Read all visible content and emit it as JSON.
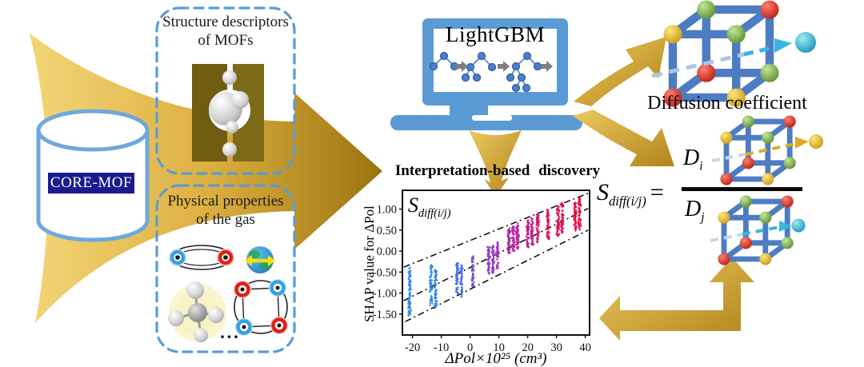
{
  "palette": {
    "gold_light": "#f2d374",
    "gold_dark": "#9b7410",
    "accent_blue": "#5b9bd5",
    "navy": "#1b1b8e",
    "strut_blue": "#4d7cc2"
  },
  "database": {
    "label": "CORE-MOF"
  },
  "structure_box": {
    "title_line1": "Structure descriptors",
    "title_line2": "of MOFs"
  },
  "physical_box": {
    "title_line1": "Physical properties",
    "title_line2": "of the gas",
    "more": "..."
  },
  "model": {
    "name": "LightGBM"
  },
  "discovery_title": "Interpretation-based discovery",
  "diffusion_label": "Diffusion coefficient",
  "formula": {
    "lhs_base": "S",
    "lhs_sub": "diff(i/j)",
    "equals": "=",
    "num_base": "D",
    "num_sub": "i",
    "den_base": "D",
    "den_sub": "j"
  },
  "chart_data": {
    "type": "scatter",
    "annotation_base": "S",
    "annotation_sub": "diff(i/j)",
    "xlabel": "ΔPol×10²⁵ (cm³)",
    "ylabel": "SHAP value for ΔPol",
    "xlim": [
      -23.5,
      41.5
    ],
    "ylim": [
      -2.0,
      1.45
    ],
    "grid": false,
    "legend": "none",
    "xticks": [
      {
        "label": "-20",
        "value": -20
      },
      {
        "label": "-10",
        "value": -10
      },
      {
        "label": "0",
        "value": 0
      },
      {
        "label": "10",
        "value": 10
      },
      {
        "label": "20",
        "value": 20
      },
      {
        "label": "30",
        "value": 30
      },
      {
        "label": "40",
        "value": 40
      }
    ],
    "yticks": [
      {
        "label": "1.00",
        "value": 1.0
      },
      {
        "label": "0.50",
        "value": 0.5
      },
      {
        "label": "0.00",
        "value": 0.0
      },
      {
        "label": "-0.50",
        "value": -0.5
      },
      {
        "label": "-1.00",
        "value": -1.0
      },
      {
        "label": "-1.50",
        "value": -1.5
      }
    ],
    "trend_lines": [
      {
        "x1": -23,
        "y1": -0.38,
        "x2": 41,
        "y2": 1.38
      },
      {
        "x1": -23,
        "y1": -1.18,
        "x2": 41,
        "y2": 1.02
      },
      {
        "x1": -22.5,
        "y1": -1.68,
        "x2": 41,
        "y2": 0.5
      }
    ],
    "clusters": [
      {
        "x": -21,
        "y_min": -1.55,
        "y_max": -0.38,
        "color": "#2e8ce6",
        "n": 80
      },
      {
        "x": -13.5,
        "y_min": -1.32,
        "y_max": -0.32,
        "color": "#2e89e6",
        "n": 60
      },
      {
        "x": -12,
        "y_min": -1.38,
        "y_max": -0.45,
        "color": "#2e86e6",
        "n": 60
      },
      {
        "x": -4.5,
        "y_min": -1.02,
        "y_max": -0.28,
        "color": "#3f76e0",
        "n": 55
      },
      {
        "x": -3,
        "y_min": -1.1,
        "y_max": -0.33,
        "color": "#4a6ede",
        "n": 55
      },
      {
        "x": 1,
        "y_min": -0.88,
        "y_max": -0.05,
        "color": "#6a58d0",
        "n": 55
      },
      {
        "x": 6.5,
        "y_min": -0.55,
        "y_max": 0.1,
        "color": "#8a46c2",
        "n": 55
      },
      {
        "x": 8,
        "y_min": -0.52,
        "y_max": 0.15,
        "color": "#9340bc",
        "n": 55
      },
      {
        "x": 9.5,
        "y_min": -0.42,
        "y_max": 0.22,
        "color": "#9c3bb6",
        "n": 55
      },
      {
        "x": 13.5,
        "y_min": -0.05,
        "y_max": 0.55,
        "color": "#ad2da8",
        "n": 60
      },
      {
        "x": 15,
        "y_min": 0.0,
        "y_max": 0.6,
        "color": "#b22aa2",
        "n": 60
      },
      {
        "x": 16.5,
        "y_min": 0.05,
        "y_max": 0.66,
        "color": "#b8279c",
        "n": 60
      },
      {
        "x": 20,
        "y_min": 0.08,
        "y_max": 0.75,
        "color": "#c51d8a",
        "n": 60
      },
      {
        "x": 21.5,
        "y_min": 0.14,
        "y_max": 0.8,
        "color": "#ca1b82",
        "n": 60
      },
      {
        "x": 23.5,
        "y_min": 0.2,
        "y_max": 0.88,
        "color": "#d21873",
        "n": 60
      },
      {
        "x": 27,
        "y_min": 0.28,
        "y_max": 1.0,
        "color": "#da155f",
        "n": 60
      },
      {
        "x": 30.5,
        "y_min": 0.35,
        "y_max": 1.1,
        "color": "#e01253",
        "n": 60
      },
      {
        "x": 32,
        "y_min": 0.4,
        "y_max": 1.15,
        "color": "#e3114d",
        "n": 60
      },
      {
        "x": 36.5,
        "y_min": 0.46,
        "y_max": 1.25,
        "color": "#e81043",
        "n": 55
      },
      {
        "x": 38,
        "y_min": 0.5,
        "y_max": 1.3,
        "color": "#ea0f3e",
        "n": 55
      }
    ]
  }
}
